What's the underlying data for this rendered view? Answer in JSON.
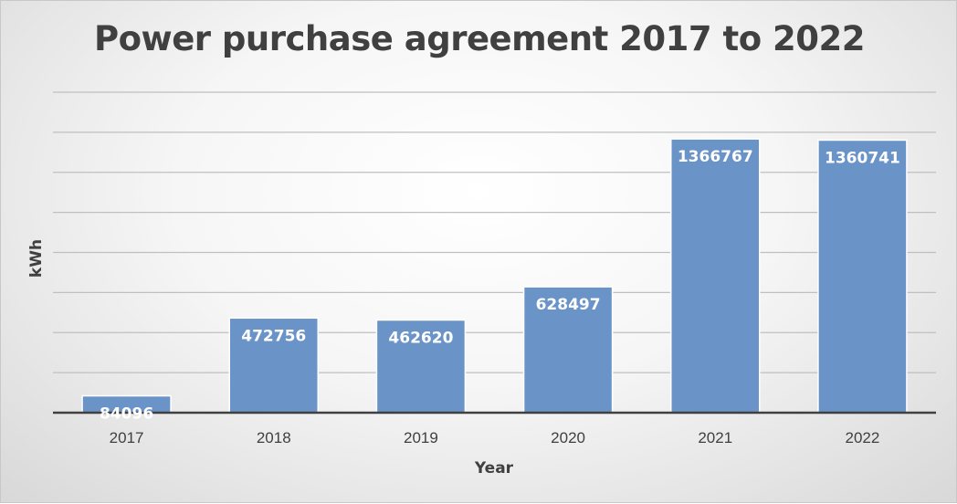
{
  "chart_data": {
    "type": "bar",
    "title": "Power purchase agreement 2017 to 2022",
    "xlabel": "Year",
    "ylabel": "kWh",
    "categories": [
      "2017",
      "2018",
      "2019",
      "2020",
      "2021",
      "2022"
    ],
    "values": [
      84096,
      472756,
      462620,
      628497,
      1366767,
      1360741
    ],
    "ylim": [
      0,
      1600000
    ],
    "gridline_step": 200000,
    "y_tick_labels_shown": false,
    "data_labels": true,
    "grid": true,
    "legend": "none",
    "colors": {
      "bar": "#6a93c8",
      "bar_border": "#ffffff",
      "grid": "#bfbfbf",
      "axis": "#404040"
    }
  }
}
